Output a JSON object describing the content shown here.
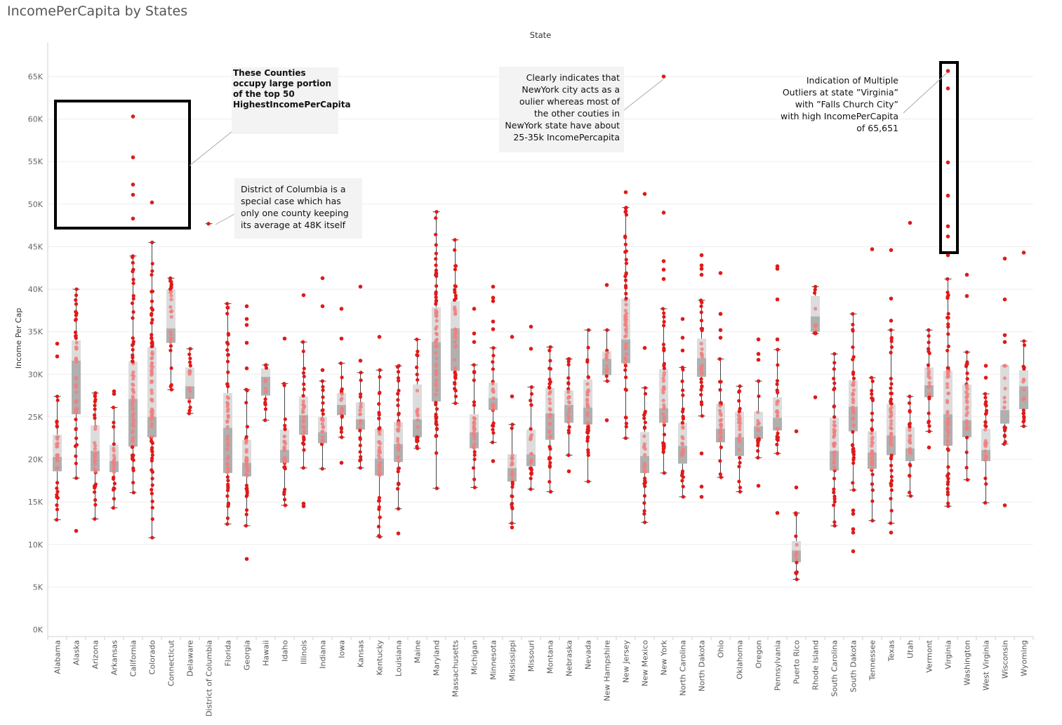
{
  "title": "IncomePerCapita by States",
  "chart_data": {
    "type": "box plot with jittered points",
    "x_header": "State",
    "ylabel": "Income Per Cap",
    "ylim": [
      0,
      70000
    ],
    "yticks": [
      0,
      5000,
      10000,
      15000,
      20000,
      25000,
      30000,
      35000,
      40000,
      45000,
      50000,
      55000,
      60000,
      65000
    ],
    "ytick_labels": [
      "0K",
      "5K",
      "10K",
      "15K",
      "20K",
      "25K",
      "30K",
      "35K",
      "40K",
      "45K",
      "50K",
      "55K",
      "60K",
      "65K"
    ],
    "grid": "horizontal",
    "point_color": "#e01a1a",
    "box_light_color": "#dcdcdc",
    "box_dark_color": "#b0b0b0",
    "whisker_color": "#444444",
    "states": [
      {
        "name": "Alabama",
        "min": 12900,
        "q1": 18600,
        "median": 20300,
        "q3": 22900,
        "max": 27400,
        "outliers": [
          32100,
          33600
        ]
      },
      {
        "name": "Alaska",
        "min": 17800,
        "q1": 25300,
        "median": 31600,
        "q3": 34000,
        "max": 40000,
        "outliers": [
          11600
        ]
      },
      {
        "name": "Arizona",
        "min": 13000,
        "q1": 18600,
        "median": 21000,
        "q3": 24000,
        "max": 27800,
        "outliers": []
      },
      {
        "name": "Arkansas",
        "min": 14300,
        "q1": 18500,
        "median": 19800,
        "q3": 21700,
        "max": 26100,
        "outliers": [
          27700,
          28000
        ]
      },
      {
        "name": "California",
        "min": 16100,
        "q1": 21500,
        "median": 27100,
        "q3": 31500,
        "max": 43900,
        "outliers": [
          48300,
          51100,
          52300,
          55500,
          60300
        ]
      },
      {
        "name": "Colorado",
        "min": 10800,
        "q1": 22600,
        "median": 25000,
        "q3": 33200,
        "max": 45500,
        "outliers": [
          50200
        ]
      },
      {
        "name": "Connecticut",
        "min": 28200,
        "q1": 33700,
        "median": 35400,
        "q3": 40000,
        "max": 41300,
        "outliers": []
      },
      {
        "name": "Delaware",
        "min": 25400,
        "q1": 27100,
        "median": 28600,
        "q3": 30800,
        "max": 33000,
        "outliers": []
      },
      {
        "name": "District of Columbia",
        "min": 47700,
        "q1": 47700,
        "median": 47700,
        "q3": 47700,
        "max": 47700,
        "outliers": []
      },
      {
        "name": "Florida",
        "min": 12400,
        "q1": 18400,
        "median": 23700,
        "q3": 27800,
        "max": 38300,
        "outliers": []
      },
      {
        "name": "Georgia",
        "min": 12200,
        "q1": 18000,
        "median": 19600,
        "q3": 22300,
        "max": 28200,
        "outliers": [
          8300,
          30700,
          33700,
          35800,
          36500,
          38000
        ]
      },
      {
        "name": "Hawaii",
        "min": 24600,
        "q1": 27500,
        "median": 29700,
        "q3": 30700,
        "max": 31100,
        "outliers": []
      },
      {
        "name": "Idaho",
        "min": 14600,
        "q1": 19600,
        "median": 21100,
        "q3": 23500,
        "max": 28900,
        "outliers": [
          34200
        ]
      },
      {
        "name": "Illinois",
        "min": 19000,
        "q1": 22900,
        "median": 25200,
        "q3": 27400,
        "max": 33800,
        "outliers": [
          14500,
          14800,
          39300
        ]
      },
      {
        "name": "Indiana",
        "min": 18900,
        "q1": 21900,
        "median": 23200,
        "q3": 25000,
        "max": 29200,
        "outliers": [
          30500,
          38000,
          41300
        ]
      },
      {
        "name": "Iowa",
        "min": 22600,
        "q1": 25200,
        "median": 26400,
        "q3": 27800,
        "max": 31300,
        "outliers": [
          19600,
          34200,
          37700
        ]
      },
      {
        "name": "Kansas",
        "min": 19000,
        "q1": 23500,
        "median": 24700,
        "q3": 26700,
        "max": 30200,
        "outliers": [
          31600,
          40300
        ]
      },
      {
        "name": "Kentucky",
        "min": 10900,
        "q1": 18100,
        "median": 20100,
        "q3": 23600,
        "max": 30500,
        "outliers": [
          34400
        ]
      },
      {
        "name": "Louisiana",
        "min": 14200,
        "q1": 19700,
        "median": 21800,
        "q3": 24400,
        "max": 31000,
        "outliers": [
          11300
        ]
      },
      {
        "name": "Maine",
        "min": 21300,
        "q1": 22600,
        "median": 24700,
        "q3": 28800,
        "max": 34100,
        "outliers": []
      },
      {
        "name": "Maryland",
        "min": 16600,
        "q1": 26800,
        "median": 33800,
        "q3": 37900,
        "max": 49100,
        "outliers": []
      },
      {
        "name": "Massachusetts",
        "min": 26600,
        "q1": 30400,
        "median": 35400,
        "q3": 38600,
        "max": 45800,
        "outliers": []
      },
      {
        "name": "Michigan",
        "min": 16700,
        "q1": 21300,
        "median": 23200,
        "q3": 25300,
        "max": 31100,
        "outliers": [
          33800,
          34800,
          37700
        ]
      },
      {
        "name": "Minnesota",
        "min": 22000,
        "q1": 25800,
        "median": 27200,
        "q3": 29000,
        "max": 33100,
        "outliers": [
          19800,
          35300,
          36200,
          38600,
          39000,
          40300
        ]
      },
      {
        "name": "Mississippi",
        "min": 12500,
        "q1": 17400,
        "median": 19000,
        "q3": 20600,
        "max": 24100,
        "outliers": [
          12000,
          27400,
          34400
        ]
      },
      {
        "name": "Missouri",
        "min": 16500,
        "q1": 19200,
        "median": 20600,
        "q3": 23500,
        "max": 28500,
        "outliers": [
          33000,
          35600
        ]
      },
      {
        "name": "Montana",
        "min": 16200,
        "q1": 22300,
        "median": 25400,
        "q3": 28400,
        "max": 33200,
        "outliers": []
      },
      {
        "name": "Nebraska",
        "min": 20500,
        "q1": 24300,
        "median": 26400,
        "q3": 28100,
        "max": 31800,
        "outliers": [
          18600
        ]
      },
      {
        "name": "Nevada",
        "min": 17400,
        "q1": 24100,
        "median": 26100,
        "q3": 29400,
        "max": 35200,
        "outliers": []
      },
      {
        "name": "New Hampshire",
        "min": 29200,
        "q1": 29900,
        "median": 31800,
        "q3": 32700,
        "max": 35200,
        "outliers": [
          24600,
          40500
        ]
      },
      {
        "name": "New Jersey",
        "min": 22500,
        "q1": 31300,
        "median": 34100,
        "q3": 38900,
        "max": 49600,
        "outliers": [
          51400
        ]
      },
      {
        "name": "New Mexico",
        "min": 12600,
        "q1": 18400,
        "median": 20400,
        "q3": 23200,
        "max": 28400,
        "outliers": [
          33100,
          51200
        ]
      },
      {
        "name": "New York",
        "min": 18400,
        "q1": 24300,
        "median": 26000,
        "q3": 30600,
        "max": 37700,
        "outliers": [
          41200,
          42300,
          43300,
          49000,
          65000
        ]
      },
      {
        "name": "North Carolina",
        "min": 15600,
        "q1": 19500,
        "median": 21600,
        "q3": 24300,
        "max": 30800,
        "outliers": [
          32800,
          34300,
          36500
        ]
      },
      {
        "name": "North Dakota",
        "min": 25100,
        "q1": 29700,
        "median": 31900,
        "q3": 34200,
        "max": 38700,
        "outliers": [
          15600,
          16800,
          20700,
          41700,
          42400,
          42800,
          44000
        ]
      },
      {
        "name": "Ohio",
        "min": 17900,
        "q1": 22000,
        "median": 23600,
        "q3": 26500,
        "max": 31800,
        "outliers": [
          34300,
          35200,
          37100,
          41900
        ]
      },
      {
        "name": "Oklahoma",
        "min": 16200,
        "q1": 20400,
        "median": 22600,
        "q3": 25600,
        "max": 28600,
        "outliers": []
      },
      {
        "name": "Oregon",
        "min": 20200,
        "q1": 22400,
        "median": 23900,
        "q3": 25600,
        "max": 29200,
        "outliers": [
          16900,
          31700,
          32400,
          34100
        ]
      },
      {
        "name": "Pennsylvania",
        "min": 20700,
        "q1": 23400,
        "median": 24900,
        "q3": 27300,
        "max": 32900,
        "outliers": [
          13700,
          34100,
          38800,
          42400,
          42700
        ]
      },
      {
        "name": "Puerto Rico",
        "min": 5900,
        "q1": 7900,
        "median": 9300,
        "q3": 10400,
        "max": 13700,
        "outliers": [
          16700,
          23300
        ]
      },
      {
        "name": "Rhode Island",
        "min": 34800,
        "q1": 35000,
        "median": 36800,
        "q3": 39200,
        "max": 40300,
        "outliers": [
          27300
        ]
      },
      {
        "name": "South Carolina",
        "min": 12200,
        "q1": 18700,
        "median": 21000,
        "q3": 24900,
        "max": 32400,
        "outliers": []
      },
      {
        "name": "South Dakota",
        "min": 16400,
        "q1": 23300,
        "median": 26200,
        "q3": 29300,
        "max": 37100,
        "outliers": [
          9200,
          11400,
          11800,
          13600,
          14000
        ]
      },
      {
        "name": "Tennessee",
        "min": 12800,
        "q1": 18900,
        "median": 20800,
        "q3": 23300,
        "max": 29600,
        "outliers": [
          44700
        ]
      },
      {
        "name": "Texas",
        "min": 12500,
        "q1": 20500,
        "median": 22800,
        "q3": 26500,
        "max": 35200,
        "outliers": [
          11400,
          36300,
          38900,
          44600
        ]
      },
      {
        "name": "Utah",
        "min": 15700,
        "q1": 19800,
        "median": 21300,
        "q3": 23800,
        "max": 27400,
        "outliers": [
          47800
        ]
      },
      {
        "name": "Vermont",
        "min": 23300,
        "q1": 27300,
        "median": 28700,
        "q3": 30800,
        "max": 35200,
        "outliers": [
          21400
        ]
      },
      {
        "name": "Virginia",
        "min": 14500,
        "q1": 21600,
        "median": 25300,
        "q3": 30400,
        "max": 41200,
        "outliers": [
          44000,
          46200,
          47400,
          51000,
          54900,
          63600,
          65651
        ]
      },
      {
        "name": "Washington",
        "min": 17600,
        "q1": 22600,
        "median": 24600,
        "q3": 28800,
        "max": 32600,
        "outliers": [
          39200,
          41700
        ]
      },
      {
        "name": "West Virginia",
        "min": 14900,
        "q1": 19800,
        "median": 21100,
        "q3": 23600,
        "max": 27700,
        "outliers": [
          29600,
          31000
        ]
      },
      {
        "name": "Wisconsin",
        "min": 21800,
        "q1": 24200,
        "median": 25800,
        "q3": 31000,
        "max": 31000,
        "outliers": [
          14600,
          33800,
          34600,
          38800,
          43600
        ]
      },
      {
        "name": "Wyoming",
        "min": 23900,
        "q1": 25900,
        "median": 28600,
        "q3": 30500,
        "max": 33900,
        "outliers": [
          44300
        ]
      }
    ]
  },
  "annotations": {
    "top50": "These Counties occupy large portion of the top 50 HighestIncomePerCapita",
    "dc": "District of Columbia is a special case which has only one county keeping its average at 48K itself",
    "newyork": "Clearly indicates that NewYork city acts as a oulier whereas most of the other couties in NewYork state have about 25-35k IncomePercapita",
    "virginia": "Indication of Multiple Outliers at state ”Virginia” with ”Falls Church City” with high IncomePerCapita of 65,651"
  }
}
